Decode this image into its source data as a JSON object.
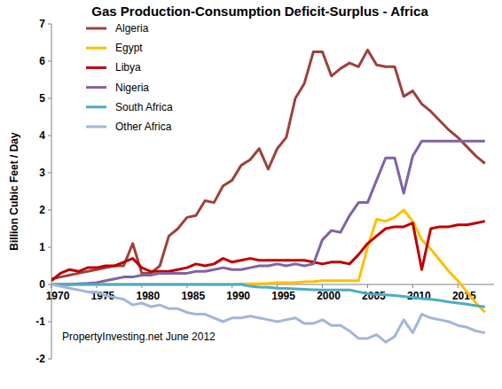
{
  "chart_data": {
    "type": "line",
    "title": "Gas Production-Consumption  Deficit-Surplus - Africa",
    "y_label": "Billion Cubic Feet / Day",
    "annotation": "PropertyInvesting.net June 2012",
    "legend": "upper left",
    "grid": false,
    "x": [
      1970,
      1971,
      1972,
      1973,
      1974,
      1975,
      1976,
      1977,
      1978,
      1979,
      1980,
      1981,
      1982,
      1983,
      1984,
      1985,
      1986,
      1987,
      1988,
      1989,
      1990,
      1991,
      1992,
      1993,
      1994,
      1995,
      1996,
      1997,
      1998,
      1999,
      2000,
      2001,
      2002,
      2003,
      2004,
      2005,
      2006,
      2007,
      2008,
      2009,
      2010,
      2011,
      2012,
      2013,
      2014,
      2015,
      2016,
      2017,
      2018
    ],
    "xlim": [
      1970,
      2019
    ],
    "xticks": [
      1970,
      1975,
      1980,
      1985,
      1990,
      1995,
      2000,
      2005,
      2010,
      2015
    ],
    "ylim": [
      -2,
      7
    ],
    "yticks": [
      -2,
      -1,
      0,
      1,
      2,
      3,
      4,
      5,
      6,
      7
    ],
    "series": [
      {
        "name": "Algeria",
        "color": "#9e413d",
        "values": [
          0.15,
          0.2,
          0.25,
          0.3,
          0.35,
          0.4,
          0.45,
          0.5,
          0.5,
          1.1,
          0.3,
          0.3,
          0.5,
          1.3,
          1.5,
          1.8,
          1.85,
          2.25,
          2.2,
          2.65,
          2.8,
          3.2,
          3.35,
          3.65,
          3.1,
          3.65,
          3.95,
          5.0,
          5.4,
          6.25,
          6.25,
          5.6,
          5.8,
          5.95,
          5.85,
          6.3,
          5.9,
          5.85,
          5.85,
          5.05,
          5.2,
          4.85,
          4.65,
          4.4,
          4.15,
          3.95,
          3.7,
          3.45,
          3.25
        ]
      },
      {
        "name": "Egypt",
        "color": "#ffc000",
        "values": [
          0,
          0,
          0,
          0,
          0,
          0,
          0,
          0,
          0,
          0,
          0,
          0,
          0,
          0,
          0,
          0,
          0,
          0,
          0,
          0,
          0,
          0.01,
          0.02,
          0.02,
          0.03,
          0.05,
          0.05,
          0.05,
          0.07,
          0.08,
          0.1,
          0.1,
          0.1,
          0.1,
          0.1,
          1.0,
          1.75,
          1.7,
          1.8,
          2.0,
          1.7,
          1.2,
          0.95,
          0.65,
          0.35,
          0.1,
          -0.2,
          -0.5,
          -0.75
        ]
      },
      {
        "name": "Libya",
        "color": "#c00000",
        "values": [
          0.1,
          0.3,
          0.4,
          0.35,
          0.45,
          0.45,
          0.5,
          0.5,
          0.6,
          0.7,
          0.45,
          0.35,
          0.35,
          0.35,
          0.4,
          0.45,
          0.55,
          0.5,
          0.55,
          0.7,
          0.6,
          0.65,
          0.7,
          0.65,
          0.65,
          0.65,
          0.65,
          0.65,
          0.65,
          0.6,
          0.55,
          0.6,
          0.6,
          0.55,
          0.8,
          1.1,
          1.3,
          1.5,
          1.55,
          1.55,
          1.65,
          0.4,
          1.5,
          1.55,
          1.55,
          1.6,
          1.6,
          1.65,
          1.7
        ]
      },
      {
        "name": "Nigeria",
        "color": "#8064a2",
        "values": [
          0,
          0,
          0,
          0.02,
          0.03,
          0.05,
          0.1,
          0.15,
          0.2,
          0.2,
          0.25,
          0.25,
          0.3,
          0.3,
          0.3,
          0.3,
          0.35,
          0.35,
          0.4,
          0.45,
          0.4,
          0.4,
          0.45,
          0.5,
          0.5,
          0.55,
          0.5,
          0.55,
          0.5,
          0.55,
          1.2,
          1.45,
          1.4,
          1.85,
          2.2,
          2.2,
          2.8,
          3.4,
          3.4,
          2.45,
          3.45,
          3.85,
          3.85,
          3.85,
          3.85,
          3.85,
          3.85,
          3.85,
          3.85
        ]
      },
      {
        "name": "South Africa",
        "color": "#4bacc6",
        "values": [
          0,
          0,
          0,
          0,
          0,
          0,
          0,
          0,
          0,
          0,
          0,
          0,
          0,
          0,
          0,
          0,
          0,
          0,
          0,
          0,
          0,
          0,
          -0.05,
          -0.07,
          -0.08,
          -0.1,
          -0.11,
          -0.12,
          -0.13,
          -0.14,
          -0.15,
          -0.15,
          -0.15,
          -0.15,
          -0.2,
          -0.25,
          -0.27,
          -0.28,
          -0.3,
          -0.32,
          -0.35,
          -0.38,
          -0.4,
          -0.43,
          -0.47,
          -0.5,
          -0.53,
          -0.57,
          -0.6
        ]
      },
      {
        "name": "Other Africa",
        "color": "#a2b6d8",
        "values": [
          0,
          -0.05,
          -0.1,
          -0.15,
          -0.2,
          -0.2,
          -0.3,
          -0.35,
          -0.4,
          -0.55,
          -0.5,
          -0.6,
          -0.55,
          -0.65,
          -0.65,
          -0.75,
          -0.8,
          -0.8,
          -0.9,
          -1.0,
          -0.9,
          -0.9,
          -0.85,
          -0.9,
          -0.95,
          -1.0,
          -0.95,
          -0.9,
          -1.05,
          -1.05,
          -0.95,
          -1.1,
          -1.1,
          -1.25,
          -1.45,
          -1.45,
          -1.35,
          -1.55,
          -1.4,
          -0.95,
          -1.3,
          -0.8,
          -0.9,
          -0.95,
          -1.0,
          -1.1,
          -1.15,
          -1.25,
          -1.3
        ]
      }
    ]
  }
}
